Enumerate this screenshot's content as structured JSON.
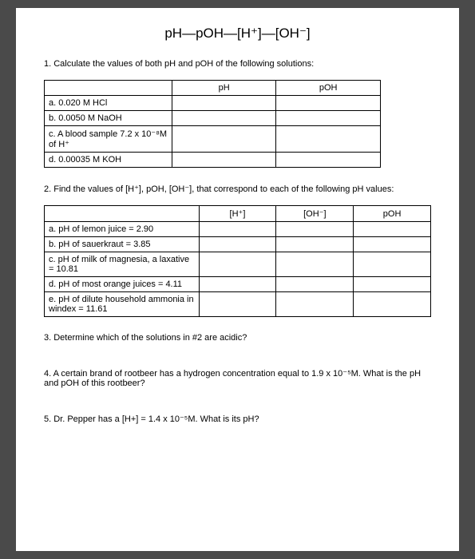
{
  "title": "pH—pOH—[H⁺]—[OH⁻]",
  "question1": {
    "text": "1. Calculate the values of both pH and pOH of the following solutions:",
    "headers": [
      "",
      "pH",
      "pOH"
    ],
    "rows": [
      "a. 0.020 M HCl",
      "b. 0.0050 M NaOH",
      "c. A blood sample 7.2 x 10⁻⁸M of H⁺",
      "d. 0.00035 M KOH"
    ]
  },
  "question2": {
    "text": "2. Find the values of [H⁺], pOH, [OH⁻], that  correspond to each of the following pH values:",
    "headers": [
      "",
      "[H⁺]",
      "[OH⁻]",
      "pOH"
    ],
    "rows": [
      "a. pH of lemon juice = 2.90",
      "b. pH of sauerkraut = 3.85",
      "c. pH of milk of magnesia, a laxative = 10.81",
      "d. pH of most orange juices = 4.11",
      "e. pH of dilute household ammonia in windex = 11.61"
    ]
  },
  "question3": "3. Determine which of the solutions in #2 are acidic?",
  "question4": "4. A certain brand of rootbeer has a hydrogen concentration equal to 1.9 x 10⁻⁵M. What is the pH and pOH of this rootbeer?",
  "question5": "5. Dr. Pepper has a [H+] = 1.4 x 10⁻⁵M.  What is its pH?"
}
